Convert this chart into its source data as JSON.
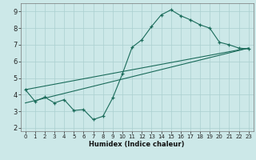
{
  "xlabel": "Humidex (Indice chaleur)",
  "bg_color": "#cce8e8",
  "grid_color": "#aacfcf",
  "line_color": "#1a6b5a",
  "xlim": [
    -0.5,
    23.5
  ],
  "ylim": [
    1.8,
    9.5
  ],
  "xticks": [
    0,
    1,
    2,
    3,
    4,
    5,
    6,
    7,
    8,
    9,
    10,
    11,
    12,
    13,
    14,
    15,
    16,
    17,
    18,
    19,
    20,
    21,
    22,
    23
  ],
  "yticks": [
    2,
    3,
    4,
    5,
    6,
    7,
    8,
    9
  ],
  "line1_x": [
    0,
    1,
    2,
    3,
    4,
    5,
    6,
    7,
    8,
    9,
    10,
    11,
    12,
    13,
    14,
    15,
    16,
    17,
    18,
    19,
    20,
    21,
    22,
    23
  ],
  "line1_y": [
    4.3,
    3.6,
    3.85,
    3.5,
    3.7,
    3.05,
    3.1,
    2.5,
    2.7,
    3.8,
    5.25,
    6.85,
    7.3,
    8.1,
    8.8,
    9.1,
    8.75,
    8.5,
    8.2,
    8.0,
    7.15,
    7.0,
    6.8,
    6.75
  ],
  "line2_x": [
    0,
    23
  ],
  "line2_y": [
    4.3,
    6.8
  ],
  "line3_x": [
    0,
    23
  ],
  "line3_y": [
    3.5,
    6.8
  ],
  "xlabel_fontsize": 6.0,
  "tick_fontsize_x": 5.0,
  "tick_fontsize_y": 6.0
}
